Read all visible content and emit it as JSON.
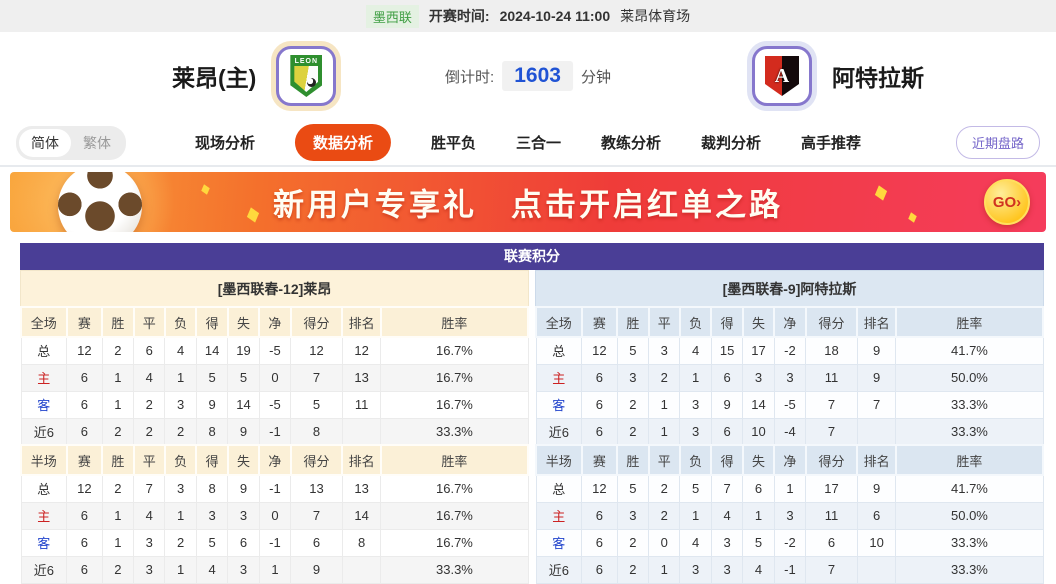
{
  "info_bar": {
    "league": "墨西联",
    "kickoff_label": "开赛时间:",
    "kickoff_time": "2024-10-24 11:00",
    "venue": "莱昂体育场"
  },
  "match": {
    "home": {
      "name": "莱昂(主)",
      "logo_text": "LEON"
    },
    "away": {
      "name": "阿特拉斯",
      "logo_letter": "A"
    },
    "countdown": {
      "label": "倒计时:",
      "value": "1603",
      "unit": "分钟"
    }
  },
  "nav": {
    "lang": [
      "简体",
      "繁体"
    ],
    "items": [
      {
        "id": "live",
        "label": "现场分析",
        "active": false
      },
      {
        "id": "data",
        "label": "数据分析",
        "active": true
      },
      {
        "id": "wdl",
        "label": "胜平负",
        "active": false
      },
      {
        "id": "three-in-one",
        "label": "三合一",
        "active": false
      },
      {
        "id": "coach",
        "label": "教练分析",
        "active": false
      },
      {
        "id": "referee",
        "label": "裁判分析",
        "active": false
      },
      {
        "id": "expert",
        "label": "高手推荐",
        "active": false
      }
    ],
    "right_button": "近期盘路"
  },
  "banner": {
    "text": "新用户专享礼　点击开启红单之路",
    "go_label": "GO›"
  },
  "colors": {
    "accent": "#ea4b13",
    "table_title_bg": "#4a3e96",
    "home_header_bg": "#fdf2da",
    "away_header_bg": "#dce7f2",
    "home_label": "#cc2222",
    "away_label": "#2244cc",
    "countdown_value": "#2053d4",
    "badge_green": "#3f9e43"
  },
  "league_table": {
    "title": "联赛积分",
    "full_label": "全场",
    "half_label": "半场",
    "columns": [
      "赛",
      "胜",
      "平",
      "负",
      "得",
      "失",
      "净",
      "得分",
      "排名",
      "胜率"
    ],
    "home": {
      "header": "[墨西联春-12]莱昂",
      "full": [
        {
          "label": "总",
          "cls": "",
          "cells": [
            "12",
            "2",
            "6",
            "4",
            "14",
            "19",
            "-5",
            "12",
            "12",
            "16.7%"
          ]
        },
        {
          "label": "主",
          "cls": "home",
          "cells": [
            "6",
            "1",
            "4",
            "1",
            "5",
            "5",
            "0",
            "7",
            "13",
            "16.7%"
          ]
        },
        {
          "label": "客",
          "cls": "away",
          "cells": [
            "6",
            "1",
            "2",
            "3",
            "9",
            "14",
            "-5",
            "5",
            "11",
            "16.7%"
          ]
        },
        {
          "label": "近6",
          "cls": "",
          "cells": [
            "6",
            "2",
            "2",
            "2",
            "8",
            "9",
            "-1",
            "8",
            "",
            "33.3%"
          ]
        }
      ],
      "half": [
        {
          "label": "总",
          "cls": "",
          "cells": [
            "12",
            "2",
            "7",
            "3",
            "8",
            "9",
            "-1",
            "13",
            "13",
            "16.7%"
          ]
        },
        {
          "label": "主",
          "cls": "home",
          "cells": [
            "6",
            "1",
            "4",
            "1",
            "3",
            "3",
            "0",
            "7",
            "14",
            "16.7%"
          ]
        },
        {
          "label": "客",
          "cls": "away",
          "cells": [
            "6",
            "1",
            "3",
            "2",
            "5",
            "6",
            "-1",
            "6",
            "8",
            "16.7%"
          ]
        },
        {
          "label": "近6",
          "cls": "",
          "cells": [
            "6",
            "2",
            "3",
            "1",
            "4",
            "3",
            "1",
            "9",
            "",
            "33.3%"
          ]
        }
      ]
    },
    "away": {
      "header": "[墨西联春-9]阿特拉斯",
      "full": [
        {
          "label": "总",
          "cls": "",
          "cells": [
            "12",
            "5",
            "3",
            "4",
            "15",
            "17",
            "-2",
            "18",
            "9",
            "41.7%"
          ]
        },
        {
          "label": "主",
          "cls": "home",
          "cells": [
            "6",
            "3",
            "2",
            "1",
            "6",
            "3",
            "3",
            "11",
            "9",
            "50.0%"
          ]
        },
        {
          "label": "客",
          "cls": "away",
          "cells": [
            "6",
            "2",
            "1",
            "3",
            "9",
            "14",
            "-5",
            "7",
            "7",
            "33.3%"
          ]
        },
        {
          "label": "近6",
          "cls": "",
          "cells": [
            "6",
            "2",
            "1",
            "3",
            "6",
            "10",
            "-4",
            "7",
            "",
            "33.3%"
          ]
        }
      ],
      "half": [
        {
          "label": "总",
          "cls": "",
          "cells": [
            "12",
            "5",
            "2",
            "5",
            "7",
            "6",
            "1",
            "17",
            "9",
            "41.7%"
          ]
        },
        {
          "label": "主",
          "cls": "home",
          "cells": [
            "6",
            "3",
            "2",
            "1",
            "4",
            "1",
            "3",
            "11",
            "6",
            "50.0%"
          ]
        },
        {
          "label": "客",
          "cls": "away",
          "cells": [
            "6",
            "2",
            "0",
            "4",
            "3",
            "5",
            "-2",
            "6",
            "10",
            "33.3%"
          ]
        },
        {
          "label": "近6",
          "cls": "",
          "cells": [
            "6",
            "2",
            "1",
            "3",
            "3",
            "4",
            "-1",
            "7",
            "",
            "33.3%"
          ]
        }
      ]
    }
  }
}
